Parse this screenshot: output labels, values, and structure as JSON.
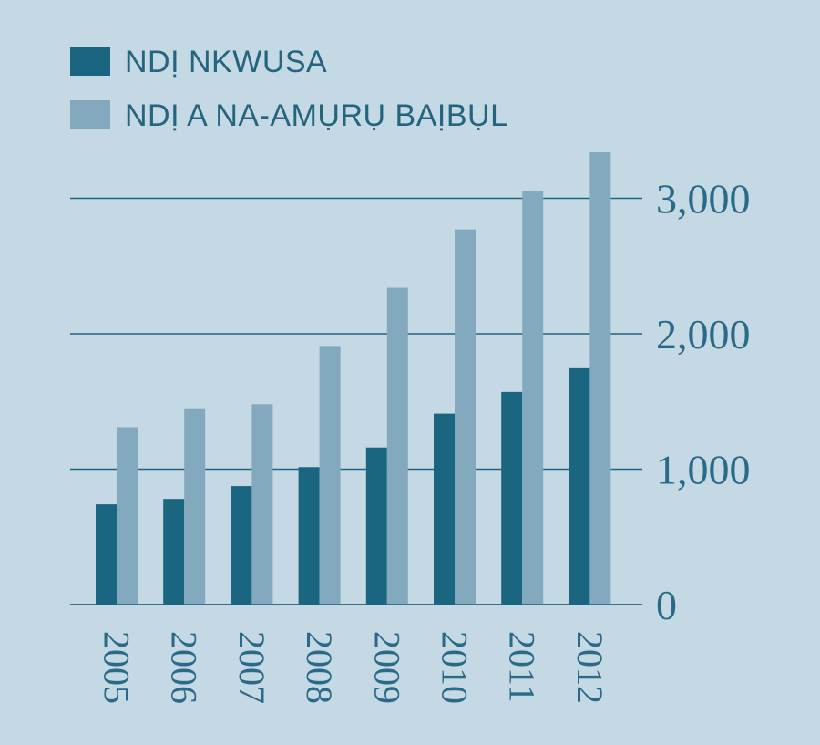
{
  "chart_data": {
    "type": "bar",
    "categories": [
      "2005",
      "2006",
      "2007",
      "2008",
      "2009",
      "2010",
      "2011",
      "2012"
    ],
    "series": [
      {
        "name": "NDỊ NKWUSA",
        "values": [
          740,
          780,
          875,
          1015,
          1160,
          1410,
          1570,
          1745
        ],
        "color": "#1a6680"
      },
      {
        "name": "NDỊ A NA-AMỤRỤ BAỊBỤL",
        "values": [
          1310,
          1450,
          1480,
          1910,
          2340,
          2770,
          3050,
          3340
        ],
        "color": "#82a9bd"
      }
    ],
    "y_ticks": [
      0,
      1000,
      2000,
      3000
    ],
    "y_tick_labels": [
      "0",
      "1,000",
      "2,000",
      "3,000"
    ],
    "ylim": [
      0,
      3400
    ],
    "y_axis_side": "right",
    "x_tick_orientation": "vertical",
    "grid": true,
    "legend_position": "top-left",
    "title": "",
    "xlabel": "",
    "ylabel": ""
  },
  "colors": {
    "background": "#c5d9e5",
    "gridline": "#1f6480",
    "tick_text": "#2a6a89",
    "legend_text": "#23647f"
  }
}
